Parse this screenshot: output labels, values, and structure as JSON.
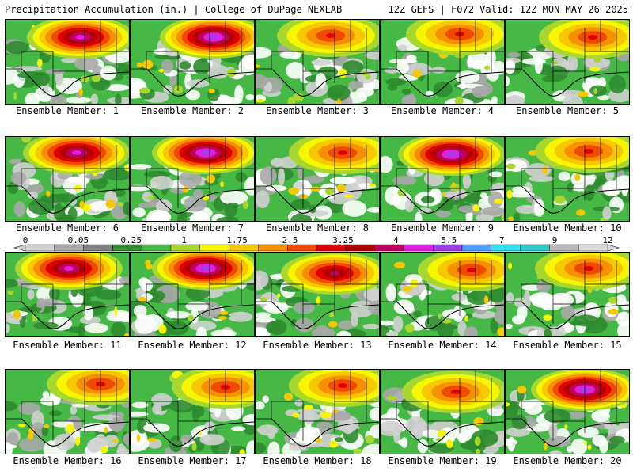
{
  "header": {
    "left": "Precipitation Accumulation (in.) | College of DuPage NEXLAB",
    "right": "12Z GEFS | F072 Valid: 12Z MON MAY 26 2025"
  },
  "panels": [
    {
      "label": "Ensemble Member: 1",
      "peak": 7
    },
    {
      "label": "Ensemble Member: 2",
      "peak": 8
    },
    {
      "label": "Ensemble Member: 3",
      "peak": 4
    },
    {
      "label": "Ensemble Member: 4",
      "peak": 4
    },
    {
      "label": "Ensemble Member: 5",
      "peak": 4
    },
    {
      "label": "Ensemble Member: 6",
      "peak": 7
    },
    {
      "label": "Ensemble Member: 7",
      "peak": 8
    },
    {
      "label": "Ensemble Member: 8",
      "peak": 4
    },
    {
      "label": "Ensemble Member: 9",
      "peak": 8
    },
    {
      "label": "Ensemble Member: 10",
      "peak": 4
    },
    {
      "label": "Ensemble Member: 11",
      "peak": 7
    },
    {
      "label": "Ensemble Member: 12",
      "peak": 8
    },
    {
      "label": "Ensemble Member: 13",
      "peak": 6
    },
    {
      "label": "Ensemble Member: 14",
      "peak": 4
    },
    {
      "label": "Ensemble Member: 15",
      "peak": 4
    },
    {
      "label": "Ensemble Member: 16",
      "peak": 4
    },
    {
      "label": "Ensemble Member: 17",
      "peak": 4
    },
    {
      "label": "Ensemble Member: 18",
      "peak": 4
    },
    {
      "label": "Ensemble Member: 19",
      "peak": 4
    },
    {
      "label": "Ensemble Member: 20",
      "peak": 8
    }
  ],
  "colorbar": {
    "tick_labels": [
      "0",
      "0.05",
      "0.25",
      "1",
      "1.75",
      "2.5",
      "3.25",
      "4",
      "5.5",
      "7",
      "9",
      "12"
    ],
    "colors": [
      "#d0d0d0",
      "#a8a8a8",
      "#808080",
      "#2e8b2e",
      "#46b846",
      "#a8d830",
      "#f6f600",
      "#f6c800",
      "#f69000",
      "#f04a00",
      "#e00000",
      "#b00000",
      "#c00060",
      "#e020e0",
      "#a040e8",
      "#4fa0ff",
      "#30e0f0",
      "#30c8c8",
      "#b8b8b8",
      "#d8d8d8"
    ]
  }
}
